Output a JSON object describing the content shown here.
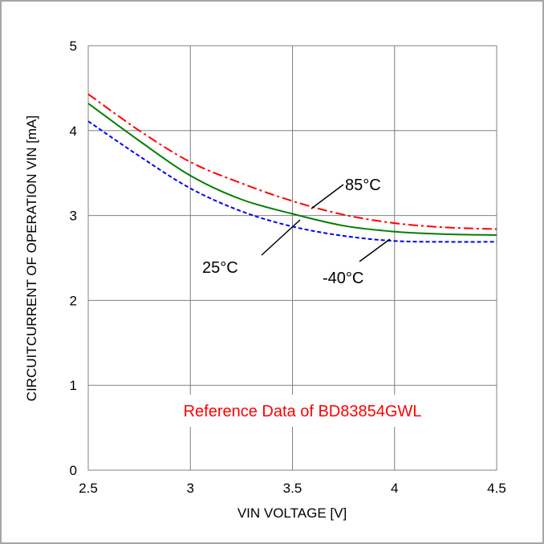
{
  "chart_data": {
    "type": "line",
    "title": "",
    "xlabel": "VIN VOLTAGE [V]",
    "ylabel": "CIRCUITCURRENT OF OPERATION VIN [mA]",
    "xlim": [
      2.5,
      4.5
    ],
    "ylim": [
      0,
      5
    ],
    "xticks": [
      "2.5",
      "3",
      "3.5",
      "4",
      "4.5"
    ],
    "yticks": [
      "0",
      "1",
      "2",
      "3",
      "4",
      "5"
    ],
    "grid": true,
    "legend": "none",
    "series": [
      {
        "name": "85°C",
        "color": "#ff0000",
        "dash": "dash-dot",
        "x": [
          2.5,
          2.75,
          3.0,
          3.25,
          3.5,
          3.75,
          4.0,
          4.25,
          4.5
        ],
        "y": [
          4.43,
          4.0,
          3.63,
          3.38,
          3.17,
          3.01,
          2.91,
          2.86,
          2.84
        ]
      },
      {
        "name": "25°C",
        "color": "#008000",
        "dash": "solid",
        "x": [
          2.5,
          2.75,
          3.0,
          3.25,
          3.5,
          3.75,
          4.0,
          4.25,
          4.5
        ],
        "y": [
          4.32,
          3.88,
          3.47,
          3.19,
          3.02,
          2.88,
          2.81,
          2.78,
          2.77
        ]
      },
      {
        "name": "-40°C",
        "color": "#0000ff",
        "dash": "dashed",
        "x": [
          2.5,
          2.75,
          3.0,
          3.25,
          3.5,
          3.75,
          4.0,
          4.25,
          4.5
        ],
        "y": [
          4.11,
          3.7,
          3.32,
          3.05,
          2.87,
          2.76,
          2.7,
          2.69,
          2.69
        ]
      }
    ],
    "annotations": [
      {
        "text": "85°C",
        "color": "#000000"
      },
      {
        "text": "25°C",
        "color": "#000000"
      },
      {
        "text": "-40°C",
        "color": "#000000"
      },
      {
        "text": "Reference Data of BD83854GWL",
        "color": "#ff0000"
      }
    ]
  }
}
